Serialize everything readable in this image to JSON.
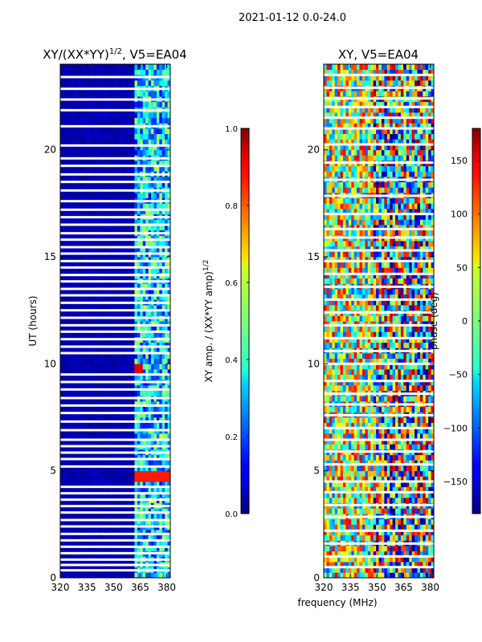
{
  "figure_title": "2021-01-12 0.0-24.0",
  "chart_data": [
    {
      "type": "heatmap",
      "title_main": "XY/(XX*YY)",
      "title_exp": "1/2",
      "title_suffix": ", V5=EA04",
      "xlabel": "",
      "ylabel": "UT (hours)",
      "xlim": [
        320,
        382
      ],
      "ylim": [
        0,
        24
      ],
      "xticks": [
        "320",
        "335",
        "350",
        "365",
        "380"
      ],
      "xtick_values": [
        320,
        335,
        350,
        365,
        380
      ],
      "yticks": [
        "0",
        "5",
        "10",
        "15",
        "20"
      ],
      "ytick_values": [
        0,
        5,
        10,
        15,
        20
      ],
      "colorbar": {
        "label_main": "XY amp. / (XX*YY amp)",
        "label_exp": "1/2",
        "range": [
          0.0,
          1.0
        ],
        "ticks": [
          "0.0",
          "0.2",
          "0.4",
          "0.6",
          "0.8",
          "1.0"
        ],
        "tick_values": [
          0.0,
          0.2,
          0.4,
          0.6,
          0.8,
          1.0
        ],
        "colormap": "jet"
      },
      "bright_band_mhz": [
        362,
        382
      ],
      "flag_hours": [
        0.35,
        0.6,
        0.85,
        1.15,
        1.45,
        1.75,
        2.05,
        2.4,
        2.7,
        3.05,
        3.35,
        3.65,
        3.95,
        4.25,
        5.2,
        5.55,
        5.85,
        6.15,
        6.45,
        6.9,
        7.3,
        7.7,
        8.05,
        8.4,
        8.8,
        9.15,
        9.5,
        10.5,
        10.8,
        11.15,
        11.5,
        11.8,
        12.15,
        12.5,
        12.85,
        13.2,
        13.5,
        13.85,
        14.15,
        14.5,
        14.8,
        15.15,
        15.45,
        15.8,
        16.1,
        16.5,
        16.85,
        17.2,
        17.6,
        18.1,
        18.5,
        18.85,
        19.25,
        19.6,
        20.2,
        21.1,
        21.85,
        22.35,
        22.85,
        23.4
      ],
      "notable_features": [
        {
          "hour": 4.75,
          "mhz_range": [
            362,
            382
          ],
          "value": 0.85
        },
        {
          "hour": 9.75,
          "mhz_range": [
            362,
            366
          ],
          "value": 0.9
        }
      ]
    },
    {
      "type": "heatmap",
      "title_main": "XY, V5=EA04",
      "xlabel": "frequency (MHz)",
      "ylabel": "",
      "xlim": [
        320,
        382
      ],
      "ylim": [
        0,
        24
      ],
      "xticks": [
        "320",
        "335",
        "350",
        "365",
        "380"
      ],
      "xtick_values": [
        320,
        335,
        350,
        365,
        380
      ],
      "yticks": [
        "0",
        "5",
        "10",
        "15",
        "20"
      ],
      "ytick_values": [
        0,
        5,
        10,
        15,
        20
      ],
      "colorbar": {
        "label_main": "phase (deg)",
        "range": [
          -180,
          180
        ],
        "ticks": [
          "−150",
          "−100",
          "−50",
          "0",
          "50",
          "100",
          "150"
        ],
        "tick_values": [
          -150,
          -100,
          -50,
          0,
          50,
          100,
          150
        ],
        "colormap": "jet"
      },
      "flag_hours": [
        0.5,
        1.0,
        1.6,
        2.2,
        2.85,
        3.4,
        4.0,
        4.5,
        5.3,
        5.9,
        6.45,
        7.0,
        7.6,
        8.1,
        8.6,
        9.2,
        10.0,
        10.6,
        11.2,
        11.8,
        12.4,
        13.0,
        13.6,
        14.2,
        14.8,
        15.3,
        15.9,
        16.3,
        17.0,
        17.85,
        18.6,
        19.4,
        20.25,
        21.0,
        21.5,
        22.0,
        22.4,
        22.9,
        23.5
      ]
    }
  ]
}
